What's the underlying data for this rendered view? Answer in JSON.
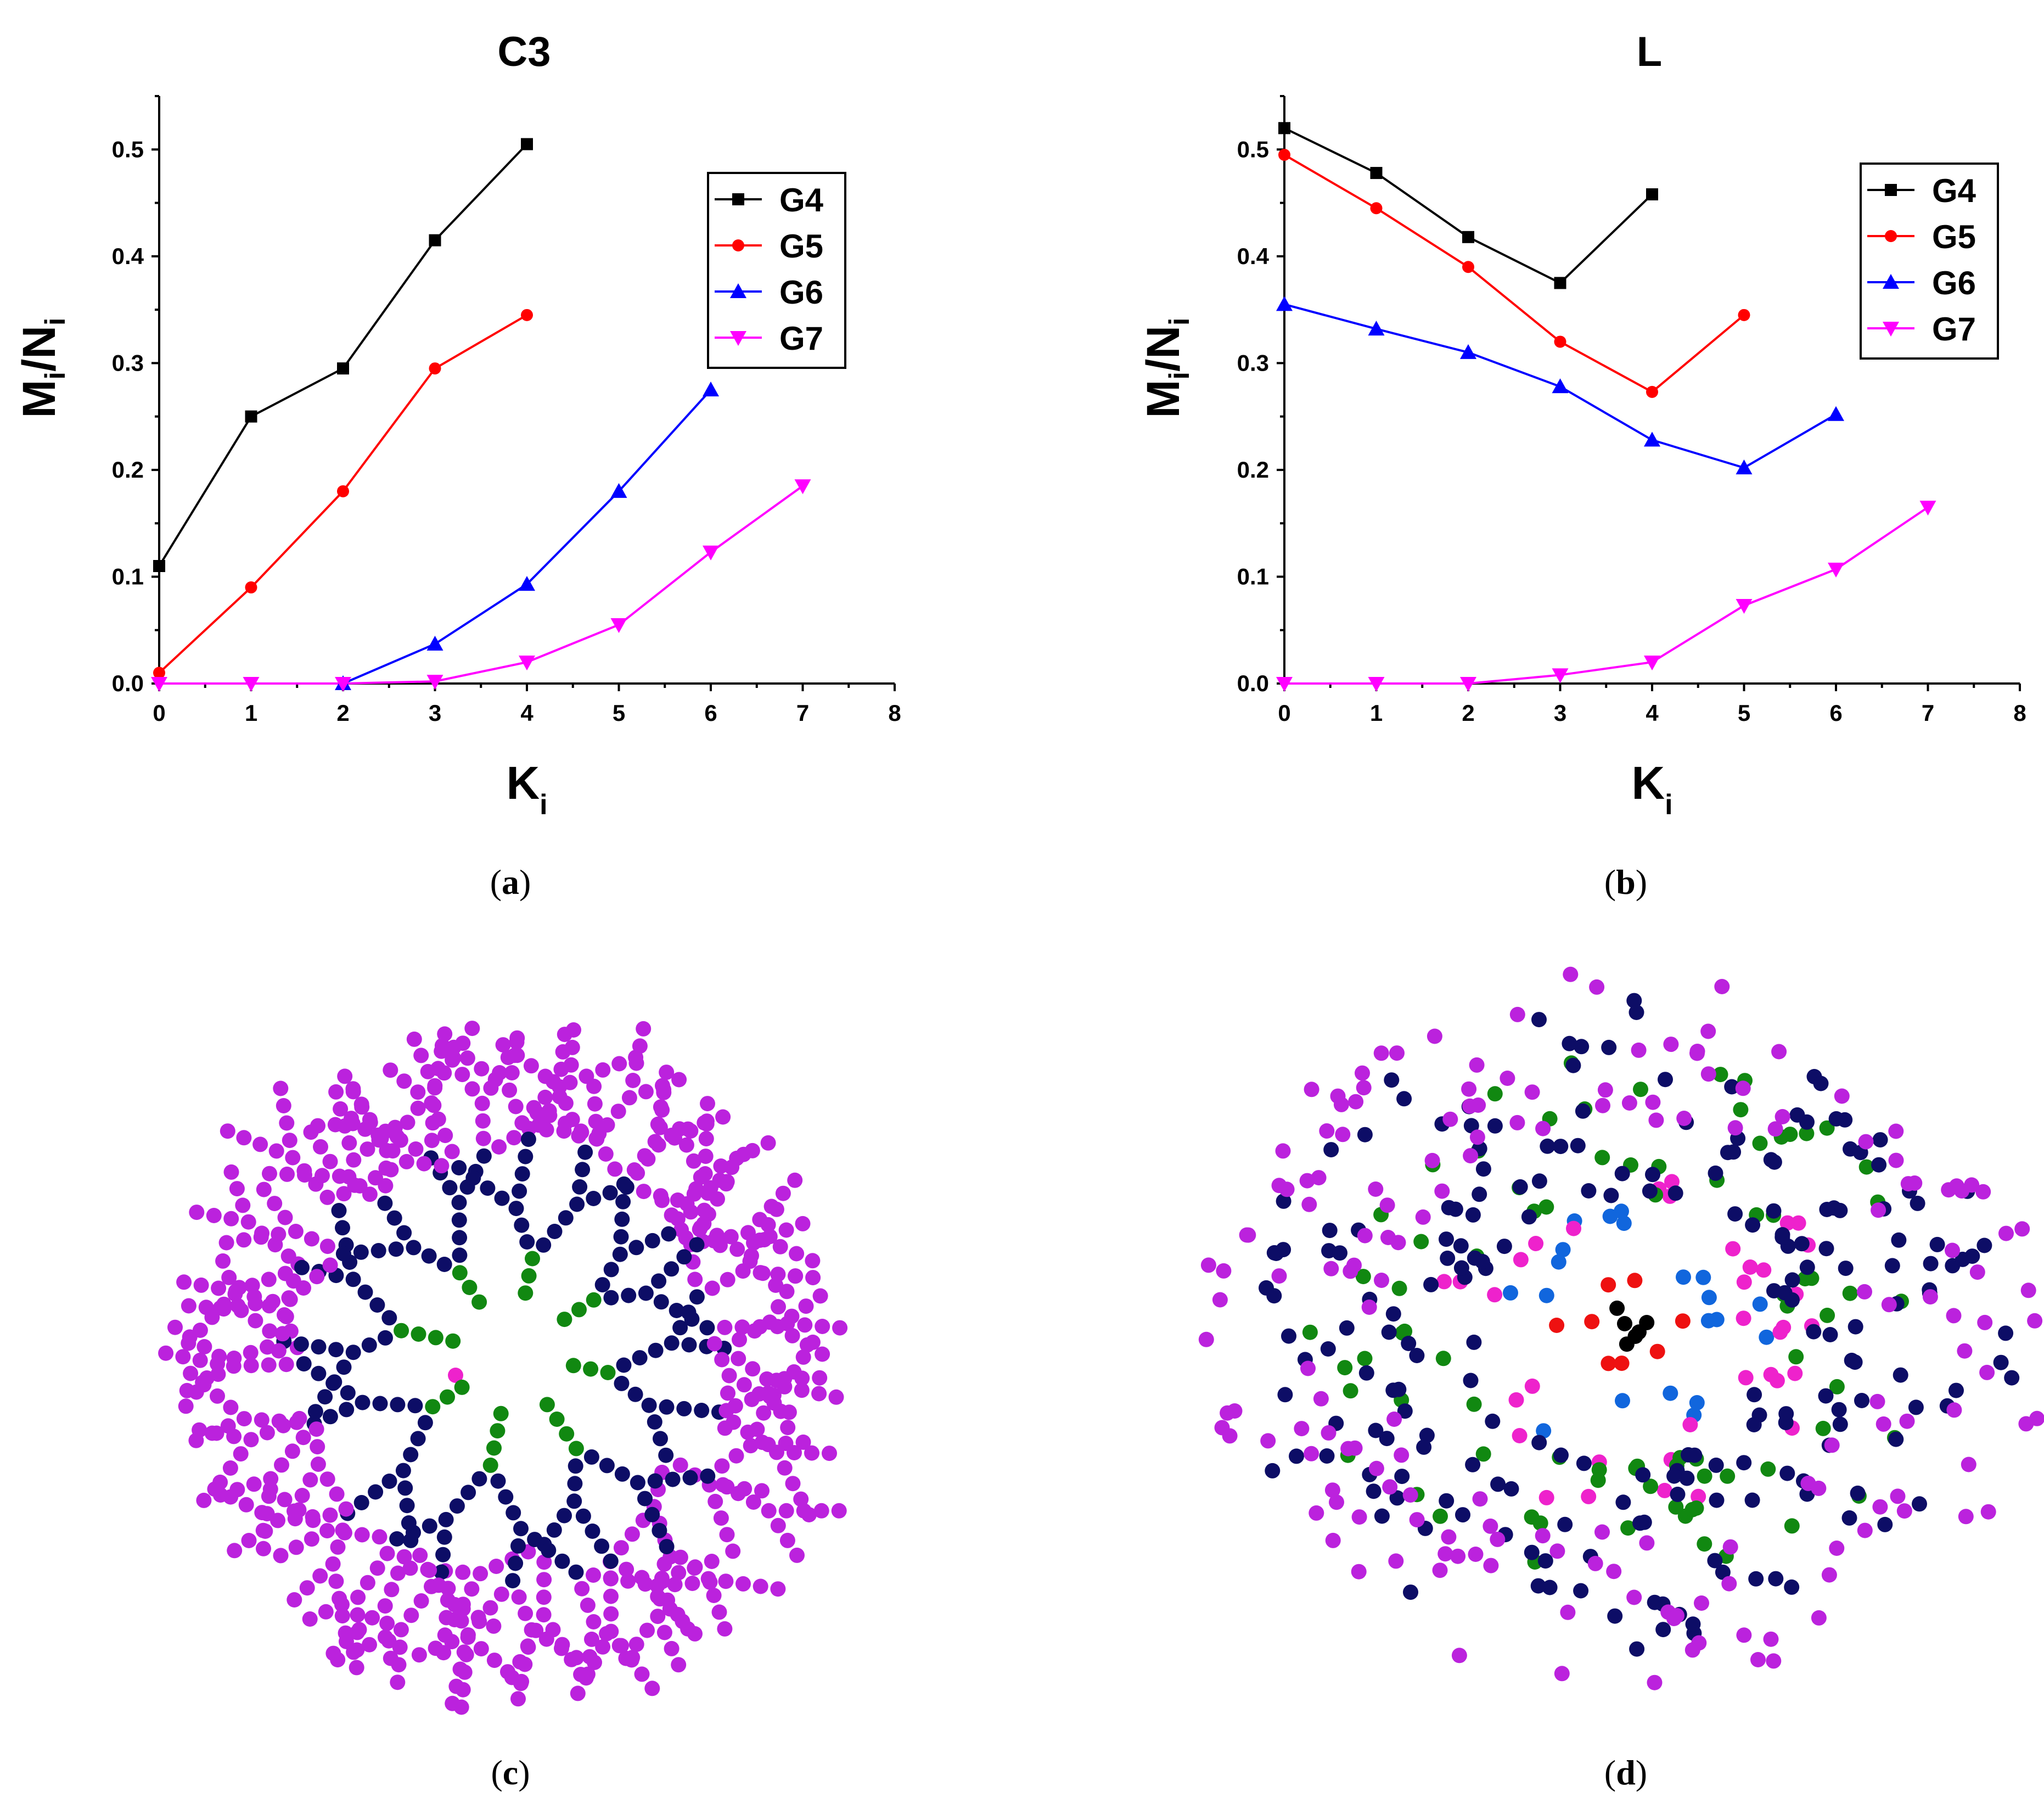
{
  "chart_data": [
    {
      "type": "line",
      "panel": "a",
      "title": "C3",
      "xlabel": "K",
      "xlabel_sub": "i",
      "ylabel": "M/N",
      "ylabel_sub_M": "i",
      "ylabel_sub_N": "i",
      "xlim": [
        0,
        8
      ],
      "ylim": [
        0,
        0.55
      ],
      "xticks": [
        0,
        1,
        2,
        3,
        4,
        5,
        6,
        7,
        8
      ],
      "yticks": [
        0.0,
        0.1,
        0.2,
        0.3,
        0.4,
        0.5
      ],
      "xtick_labels": [
        "0",
        "1",
        "2",
        "3",
        "4",
        "5",
        "6",
        "7",
        "8"
      ],
      "ytick_labels": [
        "0.0",
        "0.1",
        "0.2",
        "0.3",
        "0.4",
        "0.5"
      ],
      "legend_position": "top-right",
      "series": [
        {
          "name": "G4",
          "color": "#000000",
          "marker": "square",
          "x": [
            0,
            1,
            2,
            3,
            4
          ],
          "y": [
            0.11,
            0.25,
            0.295,
            0.415,
            0.505
          ]
        },
        {
          "name": "G5",
          "color": "#ff0000",
          "marker": "circle",
          "x": [
            0,
            1,
            2,
            3,
            4
          ],
          "y": [
            0.01,
            0.09,
            0.18,
            0.295,
            0.345
          ]
        },
        {
          "name": "G6",
          "color": "#0000ff",
          "marker": "triangle-up",
          "x": [
            2,
            3,
            4,
            5,
            6
          ],
          "y": [
            0.0,
            0.037,
            0.093,
            0.18,
            0.275
          ]
        },
        {
          "name": "G7",
          "color": "#ff00ff",
          "marker": "triangle-down",
          "x": [
            0,
            1,
            2,
            3,
            4,
            5,
            6,
            7
          ],
          "y": [
            0.0,
            0.0,
            0.0,
            0.002,
            0.02,
            0.055,
            0.123,
            0.185
          ]
        }
      ]
    },
    {
      "type": "line",
      "panel": "b",
      "title": "L",
      "xlabel": "K",
      "xlabel_sub": "i",
      "ylabel": "M/N",
      "ylabel_sub_M": "i",
      "ylabel_sub_N": "i",
      "xlim": [
        0,
        8
      ],
      "ylim": [
        0,
        0.55
      ],
      "xticks": [
        0,
        1,
        2,
        3,
        4,
        5,
        6,
        7,
        8
      ],
      "yticks": [
        0.0,
        0.1,
        0.2,
        0.3,
        0.4,
        0.5
      ],
      "xtick_labels": [
        "0",
        "1",
        "2",
        "3",
        "4",
        "5",
        "6",
        "7",
        "8"
      ],
      "ytick_labels": [
        "0.0",
        "0.1",
        "0.2",
        "0.3",
        "0.4",
        "0.5"
      ],
      "legend_position": "top-right",
      "series": [
        {
          "name": "G4",
          "color": "#000000",
          "marker": "square",
          "x": [
            0,
            1,
            2,
            3,
            4
          ],
          "y": [
            0.52,
            0.478,
            0.418,
            0.375,
            0.458
          ]
        },
        {
          "name": "G5",
          "color": "#ff0000",
          "marker": "circle",
          "x": [
            0,
            1,
            2,
            3,
            4,
            5
          ],
          "y": [
            0.495,
            0.445,
            0.39,
            0.32,
            0.273,
            0.345
          ]
        },
        {
          "name": "G6",
          "color": "#0000ff",
          "marker": "triangle-up",
          "x": [
            0,
            1,
            2,
            3,
            4,
            5,
            6
          ],
          "y": [
            0.355,
            0.332,
            0.31,
            0.278,
            0.228,
            0.202,
            0.252
          ]
        },
        {
          "name": "G7",
          "color": "#ff00ff",
          "marker": "triangle-down",
          "x": [
            0,
            1,
            2,
            3,
            4,
            5,
            6,
            7
          ],
          "y": [
            0.0,
            0.0,
            0.0,
            0.008,
            0.02,
            0.073,
            0.107,
            0.165
          ]
        }
      ]
    }
  ],
  "panels": {
    "a": {
      "open": "(",
      "letter": "a",
      "close": ")"
    },
    "b": {
      "open": "(",
      "letter": "b",
      "close": ")"
    },
    "c": {
      "open": "(",
      "letter": "c",
      "close": ")"
    },
    "d": {
      "open": "(",
      "letter": "d",
      "close": ")"
    }
  },
  "colors": {
    "purple": "#bb22dd",
    "navy": "#0d0d66",
    "green": "#118811",
    "magenta": "#ee22cc",
    "blue": "#1166dd",
    "red": "#ee1111",
    "black": "#000000"
  },
  "dendrimer_c": {
    "description_levels": [
      "purple outer branches",
      "navy inner branches",
      "green core branches"
    ],
    "seed": 7
  },
  "dendrimer_d": {
    "seed": 13
  }
}
